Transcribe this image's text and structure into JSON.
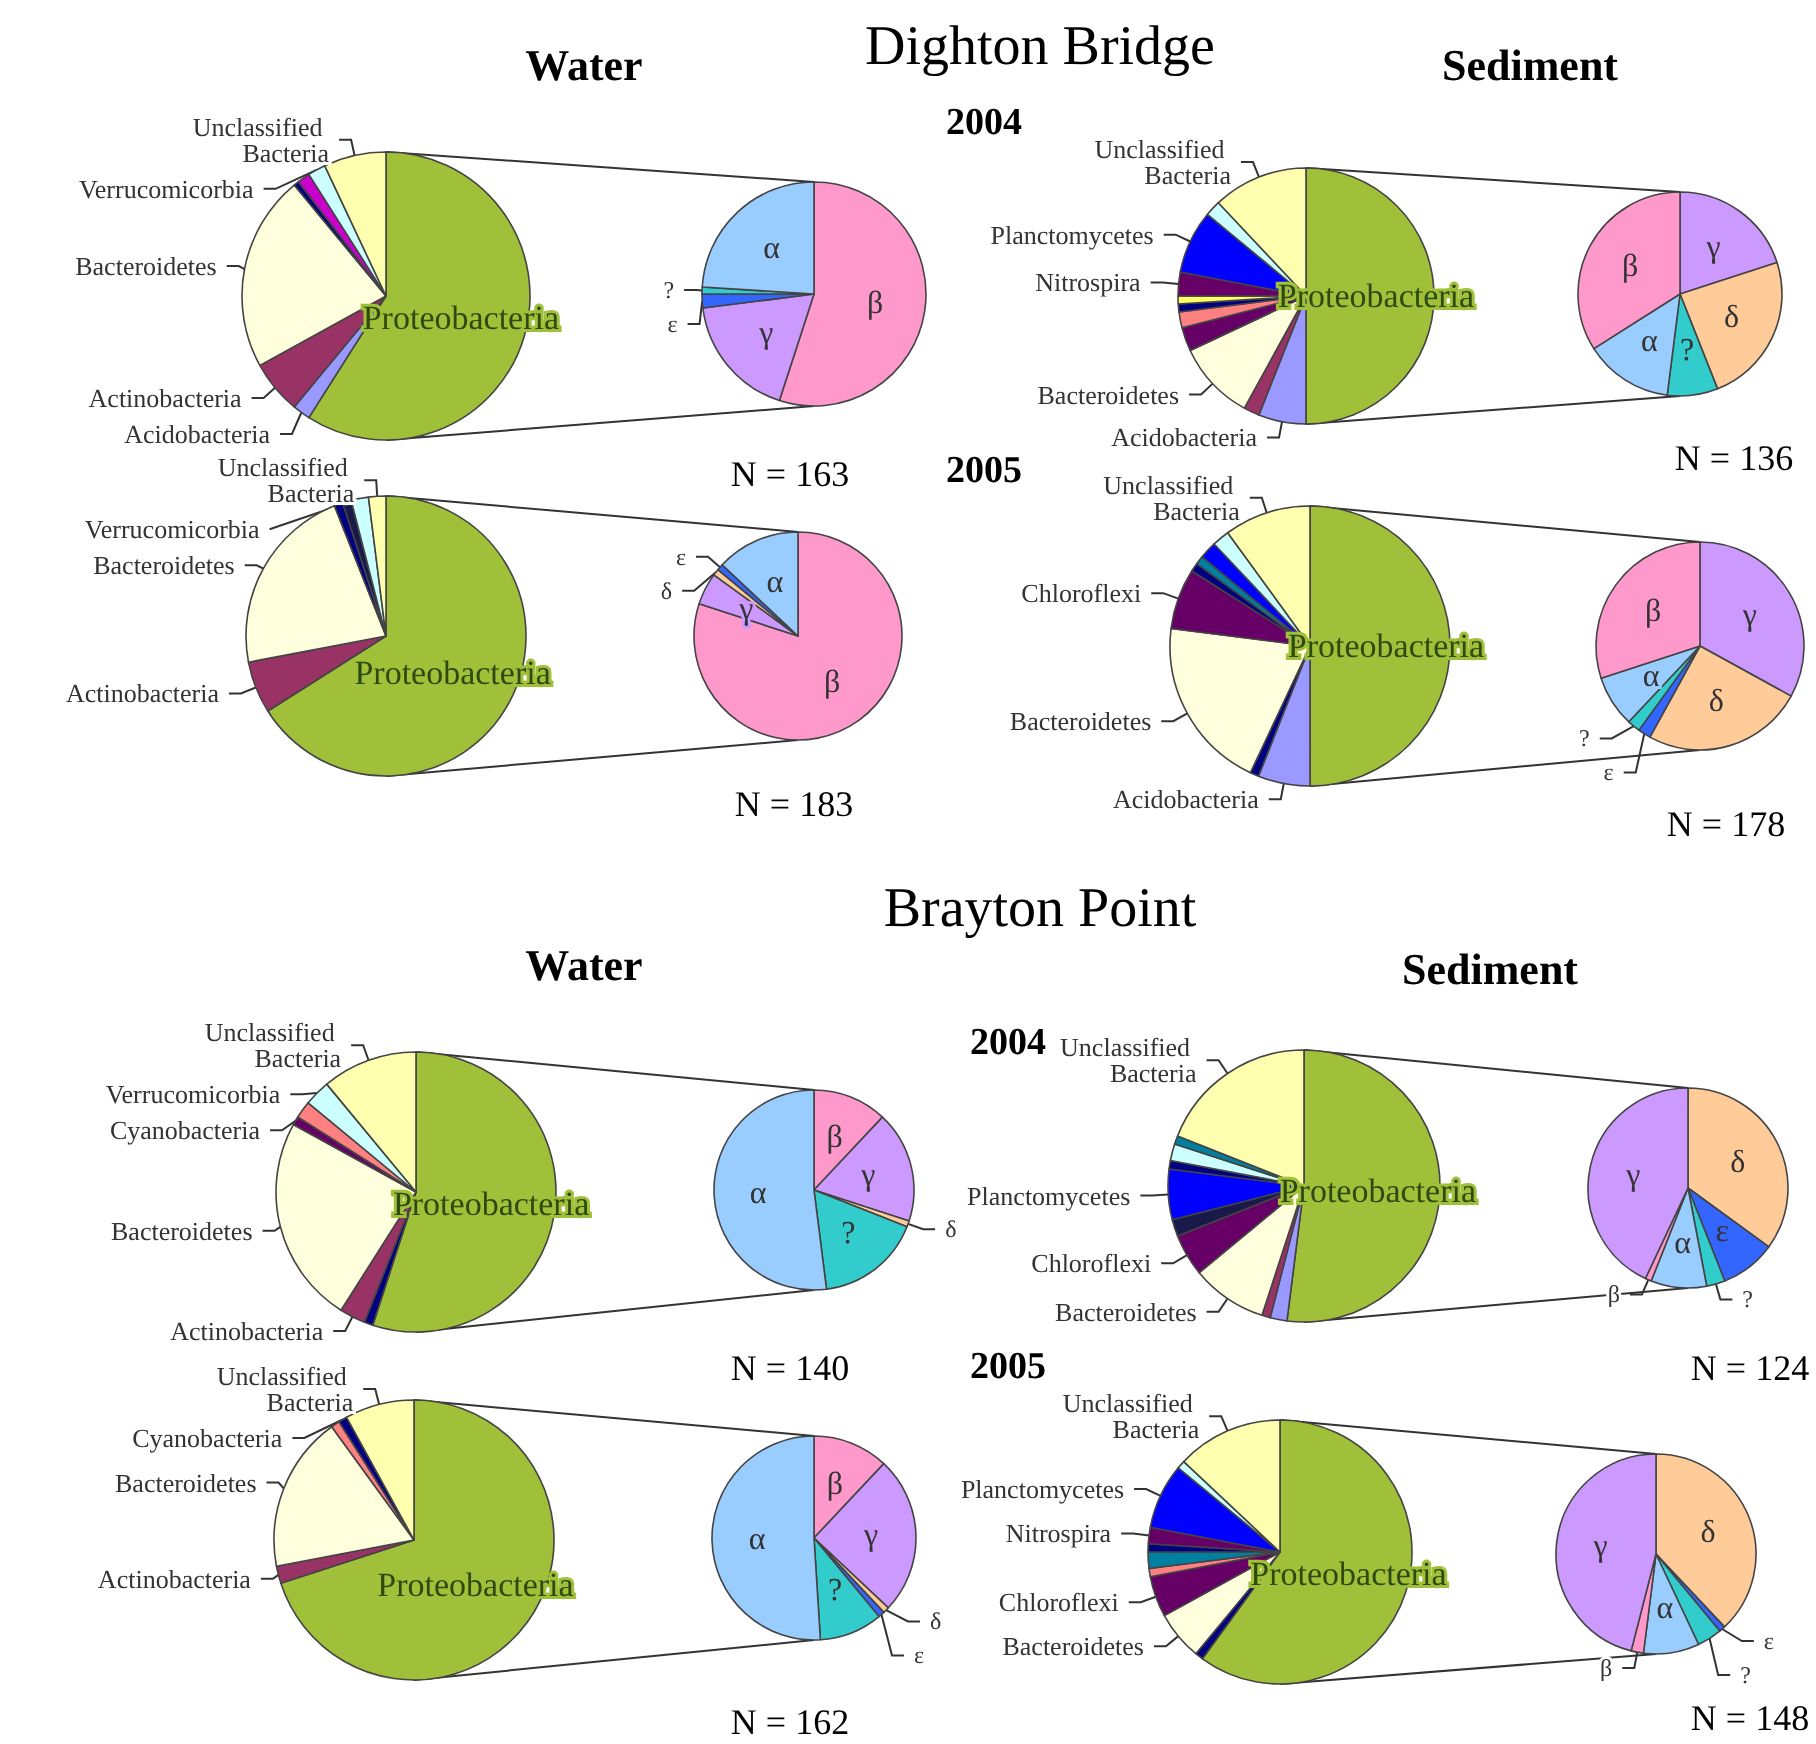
{
  "chart_data": [
    {
      "type": "other",
      "annotations": [
        "Dighton Bridge",
        "Water",
        "Sediment",
        "2004",
        "2005",
        "Brayton Point",
        "Water",
        "Sediment",
        "2004",
        "2005"
      ]
    },
    {
      "type": "pie",
      "categories": [
        "Proteobacteria",
        "Acidobacteria",
        "Actinobacteria",
        "Bacteroidetes",
        null,
        null,
        "Verrucomicorbia",
        "Unclassified Bacteria"
      ],
      "values": [
        59,
        2,
        6,
        22,
        0.6,
        1.4,
        2,
        7
      ],
      "colors": [
        "#a0c03a",
        "#9999ff",
        "#993366",
        "#ffffdd",
        "#000080",
        "#cc00cc",
        "#ccffff",
        "#ffffb0"
      ]
    },
    {
      "type": "pie",
      "categories": [
        "β",
        "γ",
        "ε",
        "?",
        "α"
      ],
      "values": [
        55,
        18,
        2,
        1,
        24
      ],
      "colors": [
        "#ff99cc",
        "#cc99ff",
        "#3366ff",
        "#33cccc",
        "#99ccff"
      ],
      "annotations": [
        "N = 163"
      ]
    },
    {
      "type": "pie",
      "categories": [
        "Proteobacteria",
        "Acidobacteria",
        null,
        "Bacteroidetes",
        null,
        null,
        null,
        null,
        "Nitrospira",
        "Planctomycetes",
        null,
        "Unclassified Bacteria"
      ],
      "values": [
        50,
        6,
        2,
        10,
        3,
        2,
        1,
        1,
        3,
        8,
        2,
        12
      ],
      "colors": [
        "#a0c03a",
        "#9999ff",
        "#993366",
        "#ffffdd",
        "#660066",
        "#ff8080",
        "#000080",
        "#ffff66",
        "#660066",
        "#0000ff",
        "#ccffff",
        "#ffffb0"
      ]
    },
    {
      "type": "pie",
      "categories": [
        "γ",
        "δ",
        "?",
        "α",
        "β"
      ],
      "values": [
        20,
        24,
        8,
        14,
        34
      ],
      "colors": [
        "#cc99ff",
        "#ffcc99",
        "#33cccc",
        "#99ccff",
        "#ff99cc"
      ],
      "annotations": [
        "N = 136"
      ]
    },
    {
      "type": "pie",
      "categories": [
        "Proteobacteria",
        "Actinobacteria",
        "Bacteroidetes",
        null,
        null,
        "Verrucomicorbia",
        "Unclassified Bacteria"
      ],
      "values": [
        66,
        6,
        22,
        1,
        1,
        2,
        2
      ],
      "colors": [
        "#a0c03a",
        "#993366",
        "#ffffdd",
        "#000080",
        "#1a1a4a",
        "#ccffff",
        "#ffffb0"
      ]
    },
    {
      "type": "pie",
      "categories": [
        "β",
        "γ",
        "δ",
        "ε",
        "α"
      ],
      "values": [
        80,
        5,
        1,
        1,
        13
      ],
      "colors": [
        "#ff99cc",
        "#cc99ff",
        "#ffcc99",
        "#3366ff",
        "#99ccff"
      ],
      "annotations": [
        "N = 183"
      ]
    },
    {
      "type": "pie",
      "categories": [
        "Proteobacteria",
        "Acidobacteria",
        null,
        "Bacteroidetes",
        "Chloroflexi",
        null,
        null,
        null,
        null,
        "Unclassified Bacteria"
      ],
      "values": [
        50,
        6,
        1,
        20,
        7,
        1,
        1,
        2,
        2,
        10
      ],
      "colors": [
        "#a0c03a",
        "#9999ff",
        "#000080",
        "#ffffdd",
        "#660066",
        "#000080",
        "#0080a0",
        "#0000ff",
        "#ccffff",
        "#ffffb0"
      ]
    },
    {
      "type": "pie",
      "categories": [
        "γ",
        "δ",
        "ε",
        "?",
        "α",
        "β"
      ],
      "values": [
        33,
        25,
        2,
        2,
        8,
        30
      ],
      "colors": [
        "#cc99ff",
        "#ffcc99",
        "#3366ff",
        "#33cccc",
        "#99ccff",
        "#ff99cc"
      ],
      "annotations": [
        "N = 178"
      ]
    },
    {
      "type": "pie",
      "categories": [
        "Proteobacteria",
        null,
        "Actinobacteria",
        "Bacteroidetes",
        "Cyanobacteria",
        null,
        "Verrucomicorbia",
        "Unclassified Bacteria"
      ],
      "values": [
        55,
        1,
        3,
        24,
        1,
        2,
        3,
        11
      ],
      "colors": [
        "#a0c03a",
        "#000080",
        "#993366",
        "#ffffdd",
        "#660066",
        "#ff8080",
        "#ccffff",
        "#ffffb0"
      ]
    },
    {
      "type": "pie",
      "categories": [
        "β",
        "γ",
        "δ",
        "?",
        "α"
      ],
      "values": [
        12,
        18,
        1,
        17,
        52
      ],
      "colors": [
        "#ff99cc",
        "#cc99ff",
        "#ffcc99",
        "#33cccc",
        "#99ccff"
      ],
      "annotations": [
        "N = 140"
      ]
    },
    {
      "type": "pie",
      "categories": [
        "Proteobacteria",
        null,
        null,
        "Bacteroidetes",
        "Chloroflexi",
        null,
        "Planctomycetes",
        null,
        null,
        null,
        "Unclassified Bacteria"
      ],
      "values": [
        52,
        2,
        1,
        9,
        5,
        2,
        6,
        1,
        2,
        1,
        19
      ],
      "colors": [
        "#a0c03a",
        "#9999ff",
        "#993366",
        "#ffffdd",
        "#660066",
        "#1a1a4a",
        "#0000ff",
        "#000080",
        "#ccffff",
        "#0080a0",
        "#ffffb0"
      ]
    },
    {
      "type": "pie",
      "categories": [
        "δ",
        "ε",
        "?",
        "α",
        "β",
        "γ"
      ],
      "values": [
        35,
        9,
        3,
        9,
        1,
        43
      ],
      "colors": [
        "#ffcc99",
        "#3366ff",
        "#33cccc",
        "#99ccff",
        "#ff99cc",
        "#cc99ff"
      ],
      "annotations": [
        "N = 124"
      ]
    },
    {
      "type": "pie",
      "categories": [
        "Proteobacteria",
        "Actinobacteria",
        "Bacteroidetes",
        null,
        "Cyanobacteria",
        "Unclassified Bacteria"
      ],
      "values": [
        70,
        2,
        18,
        1,
        1,
        8
      ],
      "colors": [
        "#a0c03a",
        "#993366",
        "#ffffdd",
        "#ff8080",
        "#000080",
        "#ffffb0"
      ]
    },
    {
      "type": "pie",
      "categories": [
        "β",
        "γ",
        "δ",
        "ε",
        "?",
        "α"
      ],
      "values": [
        12,
        25,
        1,
        1,
        10,
        51
      ],
      "colors": [
        "#ff99cc",
        "#cc99ff",
        "#ffcc99",
        "#3366ff",
        "#33cccc",
        "#99ccff"
      ],
      "annotations": [
        "N = 162"
      ]
    },
    {
      "type": "pie",
      "categories": [
        "Proteobacteria",
        null,
        "Bacteroidetes",
        "Chloroflexi",
        null,
        null,
        null,
        "Nitrospira",
        "Planctomycetes",
        null,
        "Unclassified Bacteria"
      ],
      "values": [
        60,
        1,
        6,
        5,
        1,
        2,
        1,
        2,
        8,
        1,
        13
      ],
      "colors": [
        "#a0c03a",
        "#000080",
        "#ffffdd",
        "#660066",
        "#ff8080",
        "#0080a0",
        "#000080",
        "#660066",
        "#0000ff",
        "#ccffff",
        "#ffffb0"
      ]
    },
    {
      "type": "pie",
      "categories": [
        "δ",
        "ε",
        "?",
        "α",
        "β",
        "γ"
      ],
      "values": [
        38,
        1,
        4,
        9,
        2,
        46
      ],
      "colors": [
        "#ffcc99",
        "#3366ff",
        "#33cccc",
        "#99ccff",
        "#ff99cc",
        "#cc99ff"
      ],
      "annotations": [
        "N = 148"
      ]
    }
  ]
}
